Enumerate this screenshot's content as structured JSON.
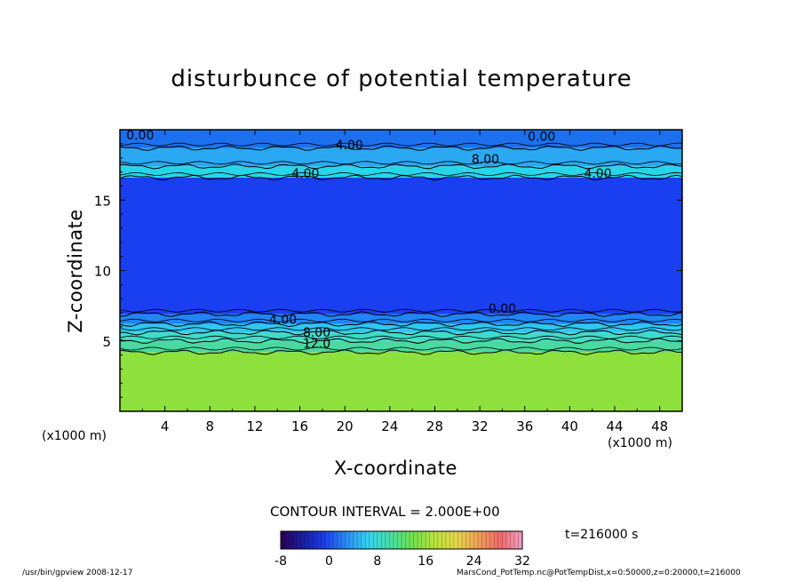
{
  "chart_data": {
    "type": "heatmap",
    "title": "disturbunce of potential temperature",
    "xlabel": "X-coordinate",
    "ylabel": "Z-coordinate",
    "x_unit_left": "(x1000 m)",
    "x_unit_right": "(x1000 m)",
    "x_ticks": [
      "4",
      "8",
      "12",
      "16",
      "20",
      "24",
      "28",
      "32",
      "36",
      "40",
      "44",
      "48"
    ],
    "y_ticks": [
      "5",
      "10",
      "15"
    ],
    "xlim": [
      0,
      50
    ],
    "ylim": [
      0,
      20
    ],
    "bands": [
      {
        "z_from": 0,
        "z_to": 4.2,
        "value": 14,
        "color": "#8ee03c"
      },
      {
        "z_from": 4.2,
        "z_to": 5.0,
        "value": 12,
        "color": "#4ad9a0"
      },
      {
        "z_from": 5.0,
        "z_to": 5.6,
        "value": 10,
        "color": "#3fdcc8"
      },
      {
        "z_from": 5.6,
        "z_to": 6.2,
        "value": 6,
        "color": "#2fc8f0"
      },
      {
        "z_from": 6.2,
        "z_to": 6.9,
        "value": 2,
        "color": "#1f86f5"
      },
      {
        "z_from": 6.9,
        "z_to": 16.6,
        "value": -4,
        "color": "#1a3ff0"
      },
      {
        "z_from": 16.6,
        "z_to": 17.4,
        "value": 4,
        "color": "#26d6e8"
      },
      {
        "z_from": 17.4,
        "z_to": 18.7,
        "value": 2,
        "color": "#2aa8f2"
      },
      {
        "z_from": 18.7,
        "z_to": 20,
        "value": 0,
        "color": "#1c70ee"
      }
    ],
    "contour_labels": [
      {
        "text": "0.00",
        "x": 1.8,
        "z": 19.3
      },
      {
        "text": "4.00",
        "x": 20.4,
        "z": 18.6
      },
      {
        "text": "8.00",
        "x": 32.5,
        "z": 17.6
      },
      {
        "text": "0.00",
        "x": 37.5,
        "z": 19.2
      },
      {
        "text": "4.00",
        "x": 16.5,
        "z": 16.6
      },
      {
        "text": "4.00",
        "x": 42.5,
        "z": 16.6
      },
      {
        "text": "4.00",
        "x": 14.5,
        "z": 6.2
      },
      {
        "text": "8.00",
        "x": 17.5,
        "z": 5.3
      },
      {
        "text": "12.0",
        "x": 17.5,
        "z": 4.5
      },
      {
        "text": "0.00",
        "x": 34.0,
        "z": 7.0
      }
    ],
    "contour_interval": "CONTOUR INTERVAL = 2.000E+00",
    "time": "t=216000 s",
    "colorbar": {
      "ticks": [
        "-8",
        "0",
        "8",
        "16",
        "24",
        "32"
      ],
      "values": [
        -8,
        0,
        8,
        16,
        24,
        32
      ],
      "colors": [
        "#2a0055",
        "#1a1f9e",
        "#1a3ff0",
        "#2a8ef5",
        "#31d6f2",
        "#44e0a4",
        "#6fe24a",
        "#b8e43a",
        "#e6d84a",
        "#f0a056",
        "#ef6a6a",
        "#f2a0c8"
      ]
    }
  },
  "footer": {
    "left": "/usr/bin/gpview  2008-12-17",
    "right": "MarsCond_PotTemp.nc@PotTempDist,x=0:50000,z=0:20000,t=216000"
  }
}
